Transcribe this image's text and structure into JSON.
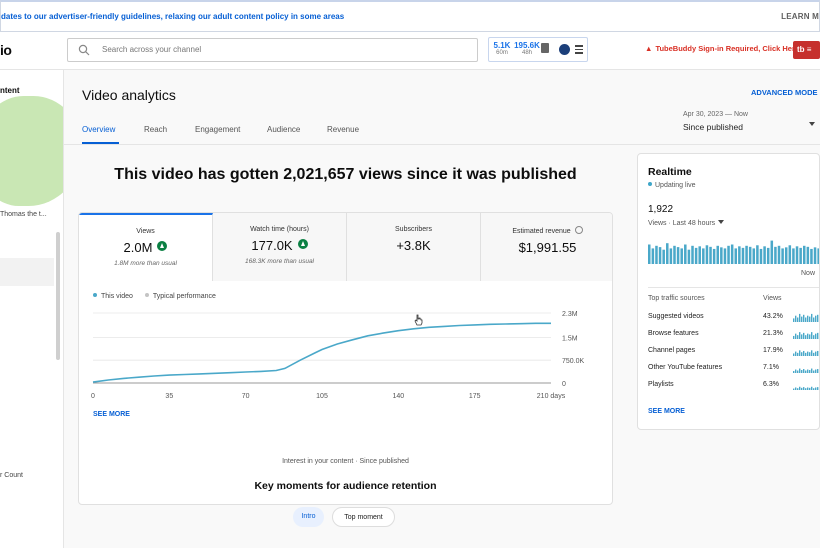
{
  "banner": {
    "message": "dates to our advertiser-friendly guidelines, relaxing our adult content policy in some areas",
    "learn_more": "LEARN M"
  },
  "header": {
    "logo": "io",
    "search_placeholder": "Search across your channel",
    "widget": {
      "subs_value": "5.1K",
      "subs_period": "60m",
      "views_value": "195.6K",
      "views_period": "48h"
    },
    "tubebuddy_notice": "TubeBuddy Sign-in Required, Click Here",
    "tubebuddy_button": "tb"
  },
  "sidebar": {
    "content_label": "ntent",
    "author": "Thomas the t...",
    "count_label": "r Count"
  },
  "page": {
    "title": "Video analytics",
    "advanced_mode": "ADVANCED MODE",
    "tabs": [
      "Overview",
      "Reach",
      "Engagement",
      "Audience",
      "Revenue"
    ],
    "date_range": {
      "dates": "Apr 30, 2023 — Now",
      "label": "Since published"
    },
    "headline": "This video has gotten 2,021,657 views since it was published"
  },
  "metrics": [
    {
      "label": "Views",
      "value": "2.0M",
      "sub": "1.8M more than usual",
      "trend": "up"
    },
    {
      "label": "Watch time (hours)",
      "value": "177.0K",
      "sub": "168.3K more than usual",
      "trend": "up"
    },
    {
      "label": "Subscribers",
      "value": "+3.8K",
      "sub": "",
      "trend": "none"
    },
    {
      "label": "Estimated revenue",
      "value": "$1,991.55",
      "sub": "",
      "trend": "none"
    }
  ],
  "chart_legend": {
    "this_video": "This video",
    "typical": "Typical performance"
  },
  "chart_data": {
    "type": "line",
    "x": [
      0,
      7,
      14,
      21,
      28,
      35,
      42,
      49,
      56,
      63,
      70,
      77,
      84,
      88,
      95,
      102,
      105,
      112,
      119,
      126,
      133,
      140,
      147,
      154,
      161,
      168,
      175,
      182,
      189,
      196,
      203,
      210
    ],
    "series": [
      {
        "values": [
          0.03,
          0.1,
          0.15,
          0.19,
          0.23,
          0.26,
          0.28,
          0.3,
          0.32,
          0.34,
          0.36,
          0.38,
          0.41,
          0.48,
          0.75,
          1.0,
          1.1,
          1.28,
          1.42,
          1.55,
          1.64,
          1.72,
          1.78,
          1.83,
          1.86,
          1.89,
          1.91,
          1.93,
          1.94,
          1.95,
          1.96,
          1.96
        ]
      }
    ],
    "x_ticks": [
      "0",
      "35",
      "70",
      "105",
      "140",
      "175",
      "210 days"
    ],
    "x_tick_values": [
      0,
      35,
      70,
      105,
      140,
      175,
      210
    ],
    "y_ticks": [
      "0",
      "750.0K",
      "1.5M",
      "2.3M"
    ],
    "y_tick_values": [
      0,
      0.75,
      1.5,
      2.3
    ],
    "xlim": [
      0,
      210
    ],
    "ylim": [
      0,
      2.3
    ],
    "grid": true,
    "line_color": "#4aa8c9",
    "legend_position": "top-left"
  },
  "see_more": "SEE MORE",
  "retention": {
    "interest": "Interest in your content · Since published",
    "title": "Key moments for audience retention",
    "pill_intro": "Intro",
    "pill_top": "Top moment"
  },
  "realtime": {
    "title": "Realtime",
    "status": "Updating live",
    "value": "1,922",
    "period": "Views · Last 48 hours",
    "now": "Now",
    "bar_fractions": [
      0.75,
      0.6,
      0.7,
      0.65,
      0.55,
      0.8,
      0.6,
      0.7,
      0.65,
      0.6,
      0.75,
      0.55,
      0.7,
      0.62,
      0.68,
      0.6,
      0.72,
      0.66,
      0.58,
      0.7,
      0.64,
      0.6,
      0.7,
      0.75,
      0.6,
      0.68,
      0.62,
      0.7,
      0.66,
      0.6,
      0.72,
      0.58,
      0.68,
      0.62,
      0.9,
      0.66,
      0.7,
      0.6,
      0.64,
      0.72,
      0.6,
      0.68,
      0.62,
      0.7,
      0.66,
      0.58,
      0.64,
      0.6
    ],
    "bar_color": "#4aa8c9",
    "col_source": "Top traffic sources",
    "col_views": "Views",
    "sources": [
      {
        "name": "Suggested videos",
        "pct": "43.2%"
      },
      {
        "name": "Browse features",
        "pct": "21.3%"
      },
      {
        "name": "Channel pages",
        "pct": "17.9%"
      },
      {
        "name": "Other YouTube features",
        "pct": "7.1%"
      },
      {
        "name": "Playlists",
        "pct": "6.3%"
      }
    ],
    "see_more": "SEE MORE"
  },
  "colors": {
    "accent": "#065fd4",
    "positive": "#0b8043",
    "warning": "#d93025"
  }
}
